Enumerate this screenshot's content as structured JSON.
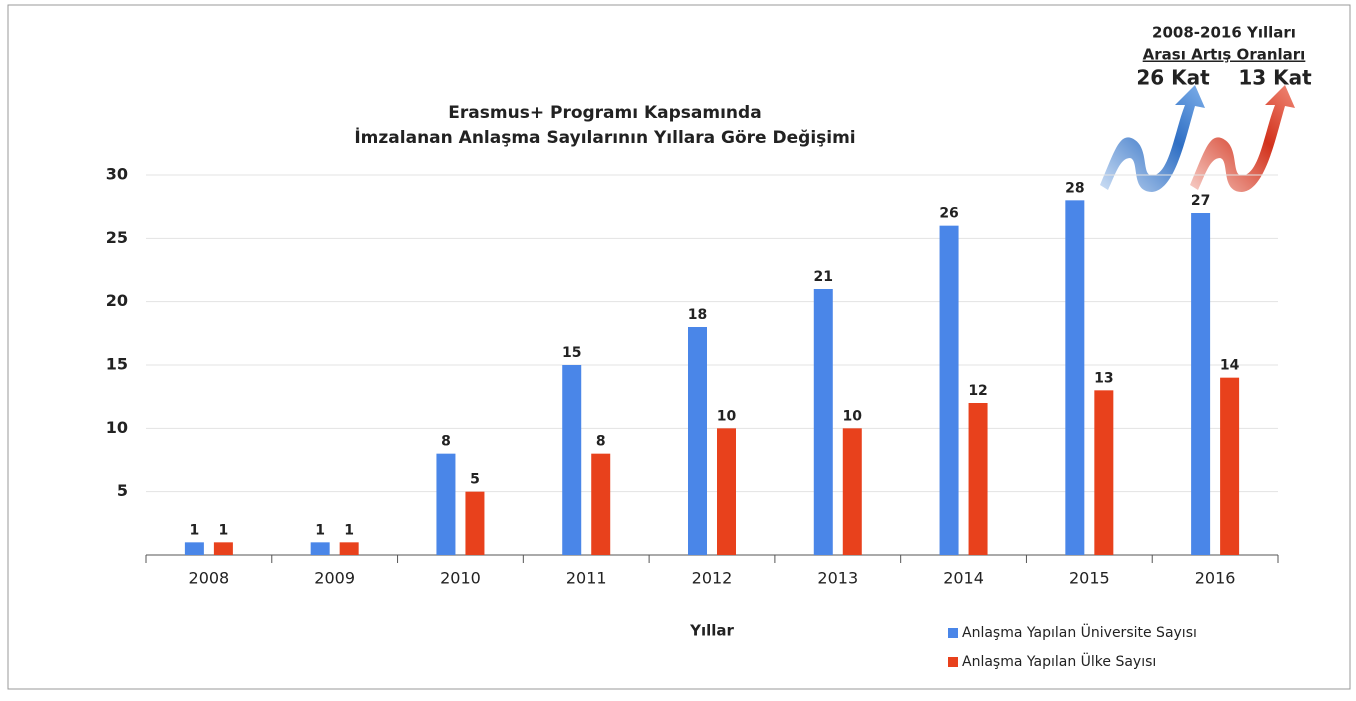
{
  "chart_data": {
    "type": "bar",
    "title": [
      "Erasmus+ Programı Kapsamında",
      "İmzalanan Anlaşma Sayılarının Yıllara Göre Değişimi"
    ],
    "x_label": "Yıllar",
    "categories": [
      "2008",
      "2009",
      "2010",
      "2011",
      "2012",
      "2013",
      "2014",
      "2015",
      "2016"
    ],
    "series": [
      {
        "name": "Anlaşma Yapılan Üniversite Sayısı",
        "color": "#4a86e8",
        "values": [
          1,
          1,
          8,
          15,
          18,
          21,
          26,
          28,
          27
        ]
      },
      {
        "name": "Anlaşma Yapılan Ülke Sayısı",
        "color": "#e8411c",
        "values": [
          1,
          1,
          5,
          8,
          10,
          10,
          12,
          13,
          14
        ]
      }
    ],
    "ylim": [
      0,
      30
    ],
    "yticks": [
      5,
      10,
      15,
      20,
      25,
      30
    ],
    "grid": true,
    "legend": "bottom-right",
    "annotations": [
      "2008-2016 Yılları",
      "Arası Artış Oranları",
      "26 Kat",
      "13 Kat"
    ]
  }
}
